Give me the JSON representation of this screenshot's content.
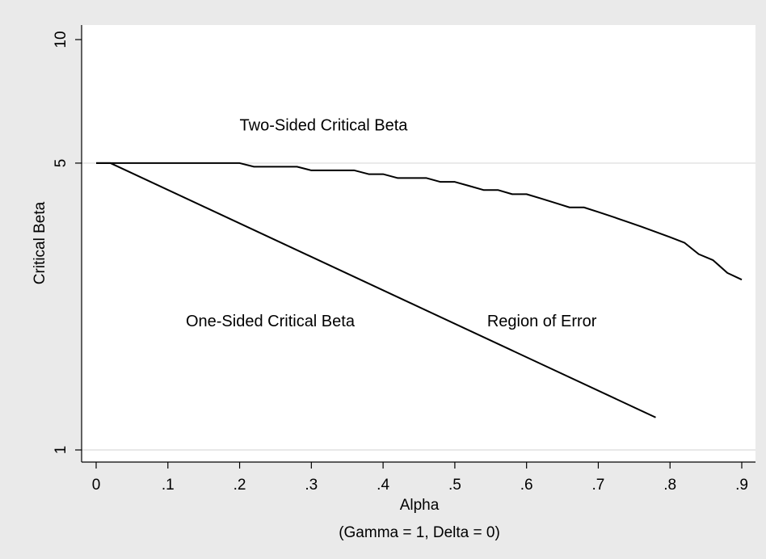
{
  "chart_data": {
    "type": "line",
    "xlabel": "Alpha",
    "xlabel_note": "(Gamma = 1, Delta = 0)",
    "ylabel": "Critical Beta",
    "xlim": [
      0,
      0.9
    ],
    "ylim": [
      0,
      10
    ],
    "x_ticks": [
      {
        "value": 0,
        "label": "0"
      },
      {
        "value": 0.1,
        "label": ".1"
      },
      {
        "value": 0.2,
        "label": ".2"
      },
      {
        "value": 0.3,
        "label": ".3"
      },
      {
        "value": 0.4,
        "label": ".4"
      },
      {
        "value": 0.5,
        "label": ".5"
      },
      {
        "value": 0.6,
        "label": ".6"
      },
      {
        "value": 0.7,
        "label": ".7"
      },
      {
        "value": 0.8,
        "label": ".8"
      },
      {
        "value": 0.9,
        "label": ".9"
      }
    ],
    "y_ticks": [
      {
        "value": 1,
        "label": "1"
      },
      {
        "value": 5,
        "label": "5"
      },
      {
        "value": 10,
        "label": "10"
      }
    ],
    "grid_y": [
      1,
      5
    ],
    "series": [
      {
        "name": "Two-Sided Critical Beta",
        "points": [
          [
            0.0,
            5.0
          ],
          [
            0.02,
            5.0
          ],
          [
            0.2,
            5.0
          ],
          [
            0.22,
            4.9
          ],
          [
            0.28,
            4.9
          ],
          [
            0.3,
            4.8
          ],
          [
            0.36,
            4.8
          ],
          [
            0.38,
            4.7
          ],
          [
            0.4,
            4.7
          ],
          [
            0.42,
            4.6
          ],
          [
            0.46,
            4.6
          ],
          [
            0.48,
            4.5
          ],
          [
            0.5,
            4.5
          ],
          [
            0.52,
            4.4
          ],
          [
            0.54,
            4.3
          ],
          [
            0.56,
            4.3
          ],
          [
            0.58,
            4.2
          ],
          [
            0.6,
            4.2
          ],
          [
            0.62,
            4.1
          ],
          [
            0.64,
            4.0
          ],
          [
            0.66,
            3.9
          ],
          [
            0.68,
            3.9
          ],
          [
            0.7,
            3.8
          ],
          [
            0.72,
            3.7
          ],
          [
            0.74,
            3.6
          ],
          [
            0.76,
            3.5
          ],
          [
            0.78,
            3.4
          ],
          [
            0.8,
            3.3
          ],
          [
            0.82,
            3.2
          ],
          [
            0.84,
            3.0
          ],
          [
            0.86,
            2.9
          ],
          [
            0.88,
            2.7
          ],
          [
            0.9,
            2.6
          ]
        ]
      },
      {
        "name": "One-Sided Critical Beta",
        "points": [
          [
            0.0,
            5.0
          ],
          [
            0.02,
            5.0
          ],
          [
            0.78,
            1.2
          ]
        ]
      }
    ],
    "annotations": [
      {
        "text": "Two-Sided Critical Beta",
        "x": 0.2,
        "y": 6.0
      },
      {
        "text": "One-Sided Critical Beta",
        "x": 0.125,
        "y": 2.0
      },
      {
        "text": "Region of Error",
        "x": 0.545,
        "y": 2.0
      }
    ],
    "colors": {
      "background": "#eaeaea",
      "plot_background": "#ffffff",
      "line": "#000000",
      "grid": "#d9d9d9"
    }
  }
}
